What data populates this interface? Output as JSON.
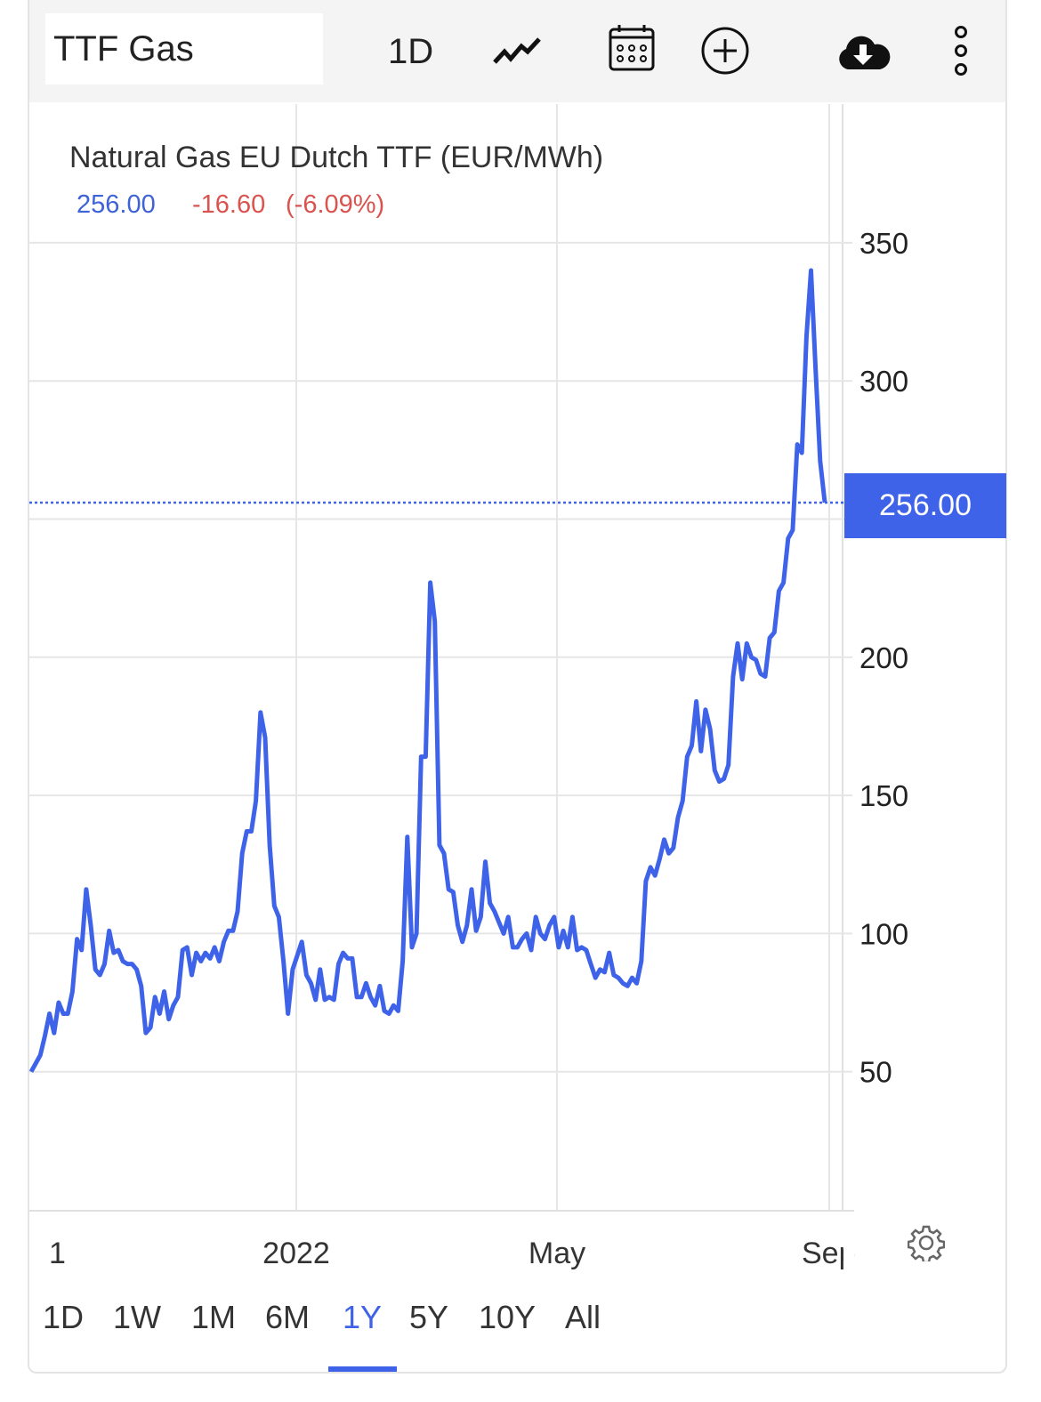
{
  "toolbar": {
    "symbol": "TTF Gas",
    "interval": "1D",
    "icons": [
      "chart-type-line-icon",
      "calendar-icon",
      "add-circle-icon",
      "cloud-download-icon",
      "more-vertical-icon"
    ]
  },
  "header": {
    "title": "Natural Gas EU Dutch TTF (EUR/MWh)",
    "price": "256.00",
    "change": "-16.60",
    "change_pct": "(-6.09%)"
  },
  "price_label": "256.00",
  "ranges": [
    {
      "label": "1D",
      "selected": false
    },
    {
      "label": "1W",
      "selected": false
    },
    {
      "label": "1M",
      "selected": false
    },
    {
      "label": "6M",
      "selected": false
    },
    {
      "label": "1Y",
      "selected": true
    },
    {
      "label": "5Y",
      "selected": false
    },
    {
      "label": "10Y",
      "selected": false
    },
    {
      "label": "All",
      "selected": false
    }
  ],
  "settings_icon": "gear-icon",
  "colors": {
    "line": "#3e63e8",
    "up": "#3e63d6",
    "down": "#d9534f",
    "grid": "#e6e6e6"
  },
  "chart_data": {
    "type": "line",
    "title": "Natural Gas EU Dutch TTF (EUR/MWh)",
    "ylim": [
      0,
      370
    ],
    "yticks": [
      50,
      100,
      150,
      200,
      250,
      300,
      350
    ],
    "ytick_labels": [
      "50",
      "100",
      "150",
      "200",
      "",
      "300",
      "350"
    ],
    "xtick_labels": [
      "1",
      "2022",
      "May",
      "Sep"
    ],
    "grid": true,
    "last_value": 256.0,
    "values": [
      50,
      53,
      56,
      63,
      71,
      64,
      75,
      71,
      71,
      79,
      98,
      94,
      116,
      103,
      87,
      85,
      89,
      101,
      93,
      94,
      90,
      89,
      89,
      87,
      81,
      64,
      66,
      77,
      71,
      79,
      69,
      74,
      77,
      94,
      95,
      85,
      93,
      90,
      93,
      91,
      95,
      90,
      97,
      101,
      101,
      108,
      129,
      137,
      137,
      148,
      180,
      171,
      132,
      110,
      106,
      90,
      71,
      87,
      92,
      97,
      85,
      82,
      76,
      87,
      76,
      77,
      76,
      89,
      93,
      91,
      91,
      77,
      77,
      82,
      77,
      74,
      81,
      72,
      71,
      74,
      72,
      90,
      135,
      95,
      100,
      164,
      164,
      227,
      213,
      132,
      129,
      116,
      115,
      103,
      97,
      103,
      116,
      101,
      106,
      126,
      111,
      108,
      104,
      100,
      106,
      95,
      95,
      98,
      100,
      94,
      106,
      100,
      98,
      103,
      106,
      95,
      101,
      95,
      106,
      94,
      95,
      94,
      89,
      84,
      87,
      86,
      93,
      85,
      84,
      82,
      81,
      84,
      82,
      90,
      119,
      124,
      121,
      127,
      134,
      129,
      131,
      142,
      148,
      164,
      168,
      184,
      166,
      181,
      174,
      159,
      155,
      156,
      161,
      193,
      205,
      192,
      205,
      200,
      199,
      194,
      193,
      207,
      209,
      224,
      227,
      243,
      246,
      277,
      274,
      316,
      340,
      304,
      271,
      256
    ]
  }
}
